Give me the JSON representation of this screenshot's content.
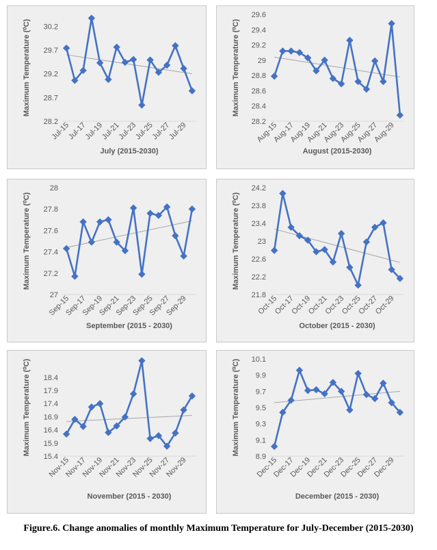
{
  "caption": "Figure.6. Change anomalies of monthly Maximum Temperature for July-December (2015-2030)",
  "style": {
    "series_color": "#4472C4",
    "trend_color": "#a6a6a6"
  },
  "chart_data": [
    {
      "type": "line",
      "xlabel": "July (2015-2030)",
      "ylabel": "Maximum Temperature (⁰C)",
      "x": [
        "Jul-15",
        "Jul-16",
        "Jul-17",
        "Jul-18",
        "Jul-19",
        "Jul-20",
        "Jul-21",
        "Jul-22",
        "Jul-23",
        "Jul-24",
        "Jul-25",
        "Jul-26",
        "Jul-27",
        "Jul-28",
        "Jul-29",
        "Jul-30"
      ],
      "x_tick_labels": [
        "Jul-15",
        "Jul-17",
        "Jul-19",
        "Jul-21",
        "Jul-23",
        "Jul-25",
        "Jul-27",
        "Jul-29"
      ],
      "values": [
        29.74,
        29.06,
        29.27,
        30.37,
        29.43,
        29.08,
        29.76,
        29.44,
        29.5,
        28.54,
        29.49,
        29.23,
        29.38,
        29.79,
        29.31,
        28.84
      ],
      "yticks": [
        "28.2",
        "28.7",
        "29.2",
        "29.7",
        "30.2"
      ],
      "ylim": [
        28.2,
        30.45
      ],
      "trendline": [
        29.6,
        29.2
      ]
    },
    {
      "type": "line",
      "xlabel": "August (2015-2030)",
      "ylabel": "Maximum Temperature (⁰C)",
      "x": [
        "Aug-15",
        "Aug-16",
        "Aug-17",
        "Aug-18",
        "Aug-19",
        "Aug-20",
        "Aug-21",
        "Aug-22",
        "Aug-23",
        "Aug-24",
        "Aug-25",
        "Aug-26",
        "Aug-27",
        "Aug-28",
        "Aug-29",
        "Aug-30"
      ],
      "x_tick_labels": [
        "Aug-15",
        "Aug-17",
        "Aug-19",
        "Aug-21",
        "Aug-23",
        "Aug-25",
        "Aug-27",
        "Aug-29"
      ],
      "values": [
        28.79,
        29.12,
        29.12,
        29.1,
        29.03,
        28.86,
        29.0,
        28.76,
        28.69,
        29.26,
        28.72,
        28.62,
        28.99,
        28.72,
        29.48,
        28.28
      ],
      "yticks": [
        "28.2",
        "28.4",
        "28.6",
        "28.8",
        "29",
        "29.2",
        "29.4",
        "29.6"
      ],
      "ylim": [
        28.2,
        29.6
      ],
      "trendline": [
        29.04,
        28.78
      ]
    },
    {
      "type": "line",
      "xlabel": "September (2015 - 2030)",
      "ylabel": "Maximum Temperature (⁰C)",
      "x": [
        "Sep-15",
        "Sep-16",
        "Sep-17",
        "Sep-18",
        "Sep-19",
        "Sep-20",
        "Sep-21",
        "Sep-22",
        "Sep-23",
        "Sep-24",
        "Sep-25",
        "Sep-26",
        "Sep-27",
        "Sep-28",
        "Sep-29",
        "Sep-30"
      ],
      "x_tick_labels": [
        "Sep-15",
        "Sep-17",
        "Sep-19",
        "Sep-21",
        "Sep-23",
        "Sep-25",
        "Sep-27",
        "Sep-29"
      ],
      "values": [
        27.43,
        27.17,
        27.68,
        27.49,
        27.68,
        27.7,
        27.49,
        27.41,
        27.81,
        27.19,
        27.76,
        27.74,
        27.82,
        27.55,
        27.36,
        27.8
      ],
      "yticks": [
        "27",
        "27.2",
        "27.4",
        "27.6",
        "27.8",
        "28"
      ],
      "ylim": [
        27,
        28
      ],
      "trendline": [
        27.44,
        27.69
      ]
    },
    {
      "type": "line",
      "xlabel": "October (2015 - 2030)",
      "ylabel": "Maximum Temperature (⁰C)",
      "x": [
        "Oct-15",
        "Oct-16",
        "Oct-17",
        "Oct-18",
        "Oct-19",
        "Oct-20",
        "Oct-21",
        "Oct-22",
        "Oct-23",
        "Oct-24",
        "Oct-25",
        "Oct-26",
        "Oct-27",
        "Oct-28",
        "Oct-29",
        "Oct-30"
      ],
      "x_tick_labels": [
        "Oct-15",
        "Oct-17",
        "Oct-19",
        "Oct-21",
        "Oct-23",
        "Oct-25",
        "Oct-27",
        "Oct-29"
      ],
      "values": [
        22.79,
        24.07,
        23.31,
        23.12,
        23.02,
        22.76,
        22.81,
        22.53,
        23.17,
        22.41,
        22.01,
        22.98,
        23.31,
        23.41,
        22.36,
        22.16
      ],
      "yticks": [
        "21.8",
        "22.2",
        "22.6",
        "23",
        "23.4",
        "23.8",
        "24.2"
      ],
      "ylim": [
        21.8,
        24.2
      ],
      "trendline": [
        23.27,
        22.52
      ]
    },
    {
      "type": "line",
      "xlabel": "November (2015 - 2030)",
      "ylabel": "Maximum Temperature (⁰C)",
      "x": [
        "Nov-15",
        "Nov-16",
        "Nov-17",
        "Nov-18",
        "Nov-19",
        "Nov-20",
        "Nov-21",
        "Nov-22",
        "Nov-23",
        "Nov-24",
        "Nov-25",
        "Nov-26",
        "Nov-27",
        "Nov-28",
        "Nov-29",
        "Nov-30"
      ],
      "x_tick_labels": [
        "Nov-15",
        "Nov-17",
        "Nov-19",
        "Nov-21",
        "Nov-23",
        "Nov-25",
        "Nov-27",
        "Nov-29"
      ],
      "values": [
        16.24,
        16.8,
        16.53,
        17.27,
        17.4,
        16.3,
        16.55,
        16.89,
        17.77,
        19.03,
        16.07,
        16.18,
        15.78,
        16.28,
        17.16,
        17.69
      ],
      "yticks": [
        "15.4",
        "15.9",
        "16.4",
        "16.9",
        "17.4",
        "17.9",
        "18.4"
      ],
      "ylim": [
        15.4,
        19.1
      ],
      "trendline": [
        16.72,
        16.95
      ]
    },
    {
      "type": "line",
      "xlabel": "December (2015 - 2030)",
      "ylabel": "Maximum Temperature  (⁰C)",
      "x": [
        "Dec-15",
        "Dec-16",
        "Dec-17",
        "Dec-18",
        "Dec-19",
        "Dec-20",
        "Dec-21",
        "Dec-22",
        "Dec-23",
        "Dec-24",
        "Dec-25",
        "Dec-26",
        "Dec-27",
        "Dec-28",
        "Dec-29",
        "Dec-30"
      ],
      "x_tick_labels": [
        "Dec-15",
        "Dec-17",
        "Dec-19",
        "Dec-21",
        "Dec-23",
        "Dec-25",
        "Dec-27",
        "Dec-29"
      ],
      "values": [
        9.02,
        9.44,
        9.59,
        9.96,
        9.71,
        9.72,
        9.67,
        9.81,
        9.7,
        9.47,
        9.92,
        9.66,
        9.61,
        9.8,
        9.56,
        9.44
      ],
      "yticks": [
        "8.9",
        "9.1",
        "9.3",
        "9.5",
        "9.7",
        "9.9",
        "10.1"
      ],
      "ylim": [
        8.9,
        10.1
      ],
      "trendline": [
        9.56,
        9.7
      ]
    }
  ]
}
